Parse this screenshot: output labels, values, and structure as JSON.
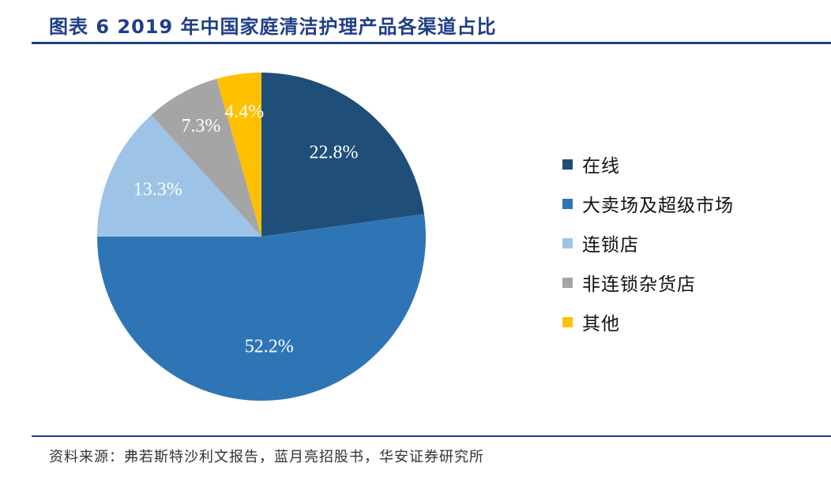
{
  "header": {
    "title": "图表 6 2019 年中国家庭清洁护理产品各渠道占比"
  },
  "chart_data": {
    "type": "pie",
    "title": "",
    "categories": [
      "在线",
      "大卖场及超级市场",
      "连锁店",
      "非连锁杂货店",
      "其他"
    ],
    "values": [
      22.8,
      52.2,
      13.3,
      7.3,
      4.4
    ],
    "labels": [
      "22.8%",
      "52.2%",
      "13.3%",
      "7.3%",
      "4.4%"
    ],
    "colors": [
      "#1f4e79",
      "#2e75b6",
      "#9dc3e6",
      "#a5a5a5",
      "#ffc000"
    ],
    "start_angle_deg": 0,
    "direction": "clockwise",
    "legend_position": "right"
  },
  "footer": {
    "source": "资料来源：弗若斯特沙利文报告，蓝月亮招股书，华安证券研究所"
  }
}
